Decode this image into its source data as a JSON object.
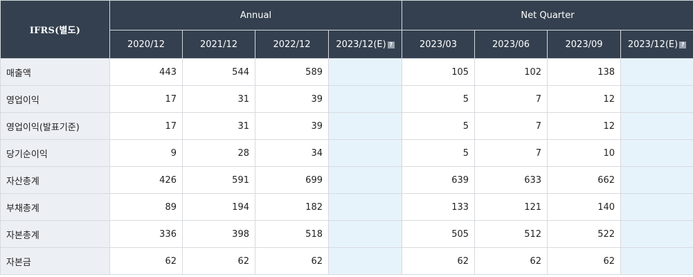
{
  "header": {
    "corner_label": "IFRS(별도)",
    "annual_label": "Annual",
    "quarter_label": "Net Quarter",
    "annual_periods": [
      "2020/12",
      "2021/12",
      "2022/12",
      "2023/12(E)"
    ],
    "quarter_periods": [
      "2023/03",
      "2023/06",
      "2023/09",
      "2023/12(E)"
    ],
    "help_icon_text": "?"
  },
  "rows": [
    {
      "label": "매출액",
      "annual": [
        "443",
        "544",
        "589",
        ""
      ],
      "quarter": [
        "105",
        "102",
        "138",
        ""
      ]
    },
    {
      "label": "영업이익",
      "annual": [
        "17",
        "31",
        "39",
        ""
      ],
      "quarter": [
        "5",
        "7",
        "12",
        ""
      ]
    },
    {
      "label": "영업이익(발표기준)",
      "annual": [
        "17",
        "31",
        "39",
        ""
      ],
      "quarter": [
        "5",
        "7",
        "12",
        ""
      ]
    },
    {
      "label": "당기순이익",
      "annual": [
        "9",
        "28",
        "34",
        ""
      ],
      "quarter": [
        "5",
        "7",
        "10",
        ""
      ]
    },
    {
      "label": "자산총계",
      "annual": [
        "426",
        "591",
        "699",
        ""
      ],
      "quarter": [
        "639",
        "633",
        "662",
        ""
      ]
    },
    {
      "label": "부채총계",
      "annual": [
        "89",
        "194",
        "182",
        ""
      ],
      "quarter": [
        "133",
        "121",
        "140",
        ""
      ]
    },
    {
      "label": "자본총계",
      "annual": [
        "336",
        "398",
        "518",
        ""
      ],
      "quarter": [
        "505",
        "512",
        "522",
        ""
      ]
    },
    {
      "label": "자본금",
      "annual": [
        "62",
        "62",
        "62",
        ""
      ],
      "quarter": [
        "62",
        "62",
        "62",
        ""
      ]
    }
  ],
  "colors": {
    "header_bg": "#34404f",
    "label_bg": "#eceff4",
    "estimate_bg": "#e6f3fa"
  }
}
